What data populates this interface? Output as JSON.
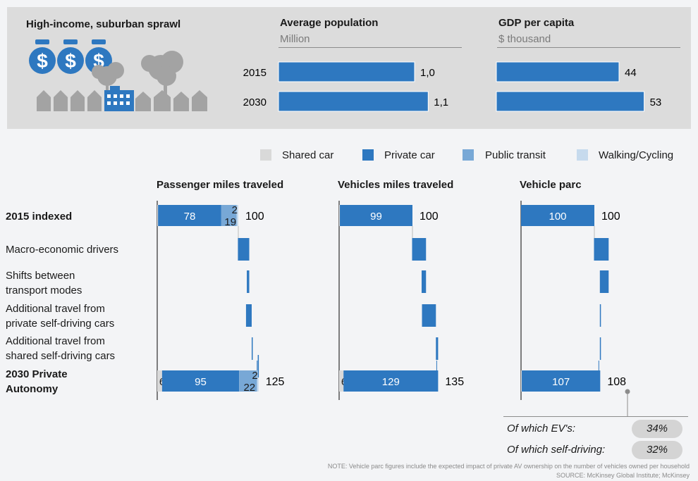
{
  "colors": {
    "shared_car": "#d9d9d9",
    "private_car": "#2e78c0",
    "public_transit": "#78a8d6",
    "walking_cycling": "#c6daed",
    "panel_bg": "#dcdcdc",
    "pill_bg": "#d4d4d4"
  },
  "icons": [
    "dollar-bag-icon",
    "dollar-bag-icon",
    "dollar-bag-icon",
    "suburb-houses-trees-icon"
  ],
  "segment": {
    "title": "High-income, suburban sprawl"
  },
  "population": {
    "title": "Average population",
    "unit": "Million"
  },
  "gdp": {
    "title": "GDP per capita",
    "unit": "$ thousand"
  },
  "years": [
    "2015",
    "2030"
  ],
  "population_labels": [
    "1,0",
    "1,1"
  ],
  "gdp_labels": [
    "44",
    "53"
  ],
  "legend": [
    "Shared car",
    "Private car",
    "Public transit",
    "Walking/Cycling"
  ],
  "panels": {
    "pmt": {
      "title": "Passenger miles traveled"
    },
    "vmt": {
      "title": "Vehicles miles traveled"
    },
    "parc": {
      "title": "Vehicle parc"
    }
  },
  "rows": {
    "r2015": "2015 indexed",
    "r1": "Macro-economic drivers",
    "r2a": "Shifts between",
    "r2b": "transport modes",
    "r3a": "Additional travel from",
    "r3b": "private self-driving cars",
    "r4a": "Additional travel from",
    "r4b": "shared self-driving cars",
    "r2030a": "2030 Private",
    "r2030b": "Autonomy"
  },
  "ev_label": "Of which EV's:",
  "ev_value": "34%",
  "sd_label": "Of which self-driving:",
  "sd_value": "32%",
  "note": "NOTE: Vehicle parc figures include the expected impact of private AV ownership on the number of vehicles owned per household",
  "source": "SOURCE: McKinsey Global Institute; McKinsey",
  "chart_data": [
    {
      "type": "bar",
      "title": "Average population",
      "ylabel": "Million",
      "categories": [
        "2015",
        "2030"
      ],
      "values": [
        1.0,
        1.1
      ]
    },
    {
      "type": "bar",
      "title": "GDP per capita",
      "ylabel": "$ thousand",
      "categories": [
        "2015",
        "2030"
      ],
      "values": [
        44,
        53
      ]
    },
    {
      "type": "bar",
      "title": "Passenger miles traveled",
      "categories": [
        "2015 indexed",
        "2030 Private Autonomy"
      ],
      "series": [
        {
          "name": "Shared car",
          "values": [
            1,
            6
          ]
        },
        {
          "name": "Private car",
          "values": [
            78,
            95
          ]
        },
        {
          "name": "Public transit",
          "values": [
            19,
            22
          ]
        },
        {
          "name": "Walking/Cycling",
          "values": [
            2,
            2
          ]
        }
      ],
      "totals": [
        100,
        125
      ]
    },
    {
      "type": "bar",
      "title": "Vehicles miles traveled",
      "categories": [
        "2015 indexed",
        "2030 Private Autonomy"
      ],
      "series": [
        {
          "name": "Shared car",
          "values": [
            1,
            6
          ]
        },
        {
          "name": "Private car",
          "values": [
            99,
            129
          ]
        }
      ],
      "totals": [
        100,
        135
      ]
    },
    {
      "type": "bar",
      "title": "Vehicle parc",
      "categories": [
        "2015 indexed",
        "2030 Private Autonomy"
      ],
      "series": [
        {
          "name": "Shared car",
          "values": [
            0,
            1
          ]
        },
        {
          "name": "Private car",
          "values": [
            100,
            107
          ]
        }
      ],
      "totals": [
        100,
        108
      ]
    }
  ]
}
